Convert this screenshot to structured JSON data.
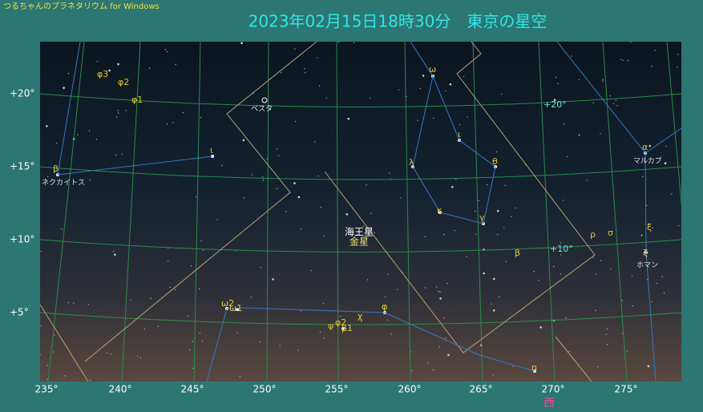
{
  "app_title": "つるちゃんのプラネタリウム for Windows",
  "heading": "2023年02月15日18時30分　東京の星空",
  "ra_labels": [
    "235°",
    "240°",
    "245°",
    "250°",
    "255°",
    "260°",
    "265°",
    "270°",
    "275°"
  ],
  "dec_labels": [
    "+20°",
    "+15°",
    "+10°",
    "+5°"
  ],
  "grid_labels": [
    "+20°",
    "+10°"
  ],
  "direction": "西",
  "star_labels": [
    "φ3",
    "φ2",
    "φ1",
    "ι",
    "β",
    "ω",
    "ι",
    "λ",
    "θ",
    "κ",
    "γ",
    "α",
    "ρ",
    "σ",
    "ξ",
    "β",
    "ζ",
    "ω2",
    "ω1",
    "χ",
    "φ",
    "ψ",
    "φ2",
    "β1",
    "η"
  ],
  "name_labels": [
    "ネクカイトス",
    "ベスタ",
    "マルカブ",
    "ホマン"
  ],
  "planet_labels": [
    "海王星",
    "金星"
  ]
}
